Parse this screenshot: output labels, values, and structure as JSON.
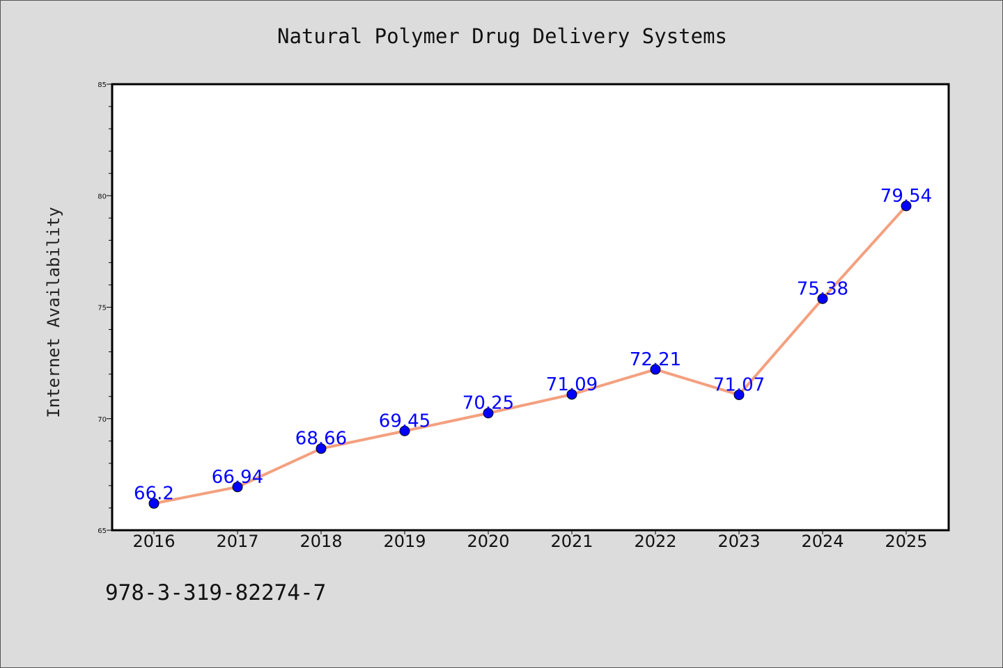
{
  "chart_data": {
    "type": "line",
    "title": "Natural Polymer Drug Delivery Systems",
    "xlabel": "",
    "ylabel": "Internet Availability",
    "categories": [
      "2016",
      "2017",
      "2018",
      "2019",
      "2020",
      "2021",
      "2022",
      "2023",
      "2024",
      "2025"
    ],
    "series": [
      {
        "values": [
          66.2,
          66.94,
          68.66,
          69.45,
          70.25,
          71.09,
          72.21,
          71.07,
          75.38,
          79.54
        ],
        "data_labels": [
          "66.2",
          "66.94",
          "68.66",
          "69.45",
          "70.25",
          "71.09",
          "72.21",
          "71.07",
          "75.38",
          "79.54"
        ]
      }
    ],
    "ylim": [
      65,
      85
    ],
    "yticks": [
      "65",
      "70",
      "75",
      "80",
      "85"
    ],
    "grid": false,
    "legend": "none",
    "colors": {
      "line": "#f4a07f",
      "marker": "#0000ff",
      "data_label": "#0000ff",
      "plot_background": "#ffffff",
      "page_background": "#dcdcdc"
    }
  },
  "footer": {
    "identifier": "978-3-319-82274-7"
  }
}
